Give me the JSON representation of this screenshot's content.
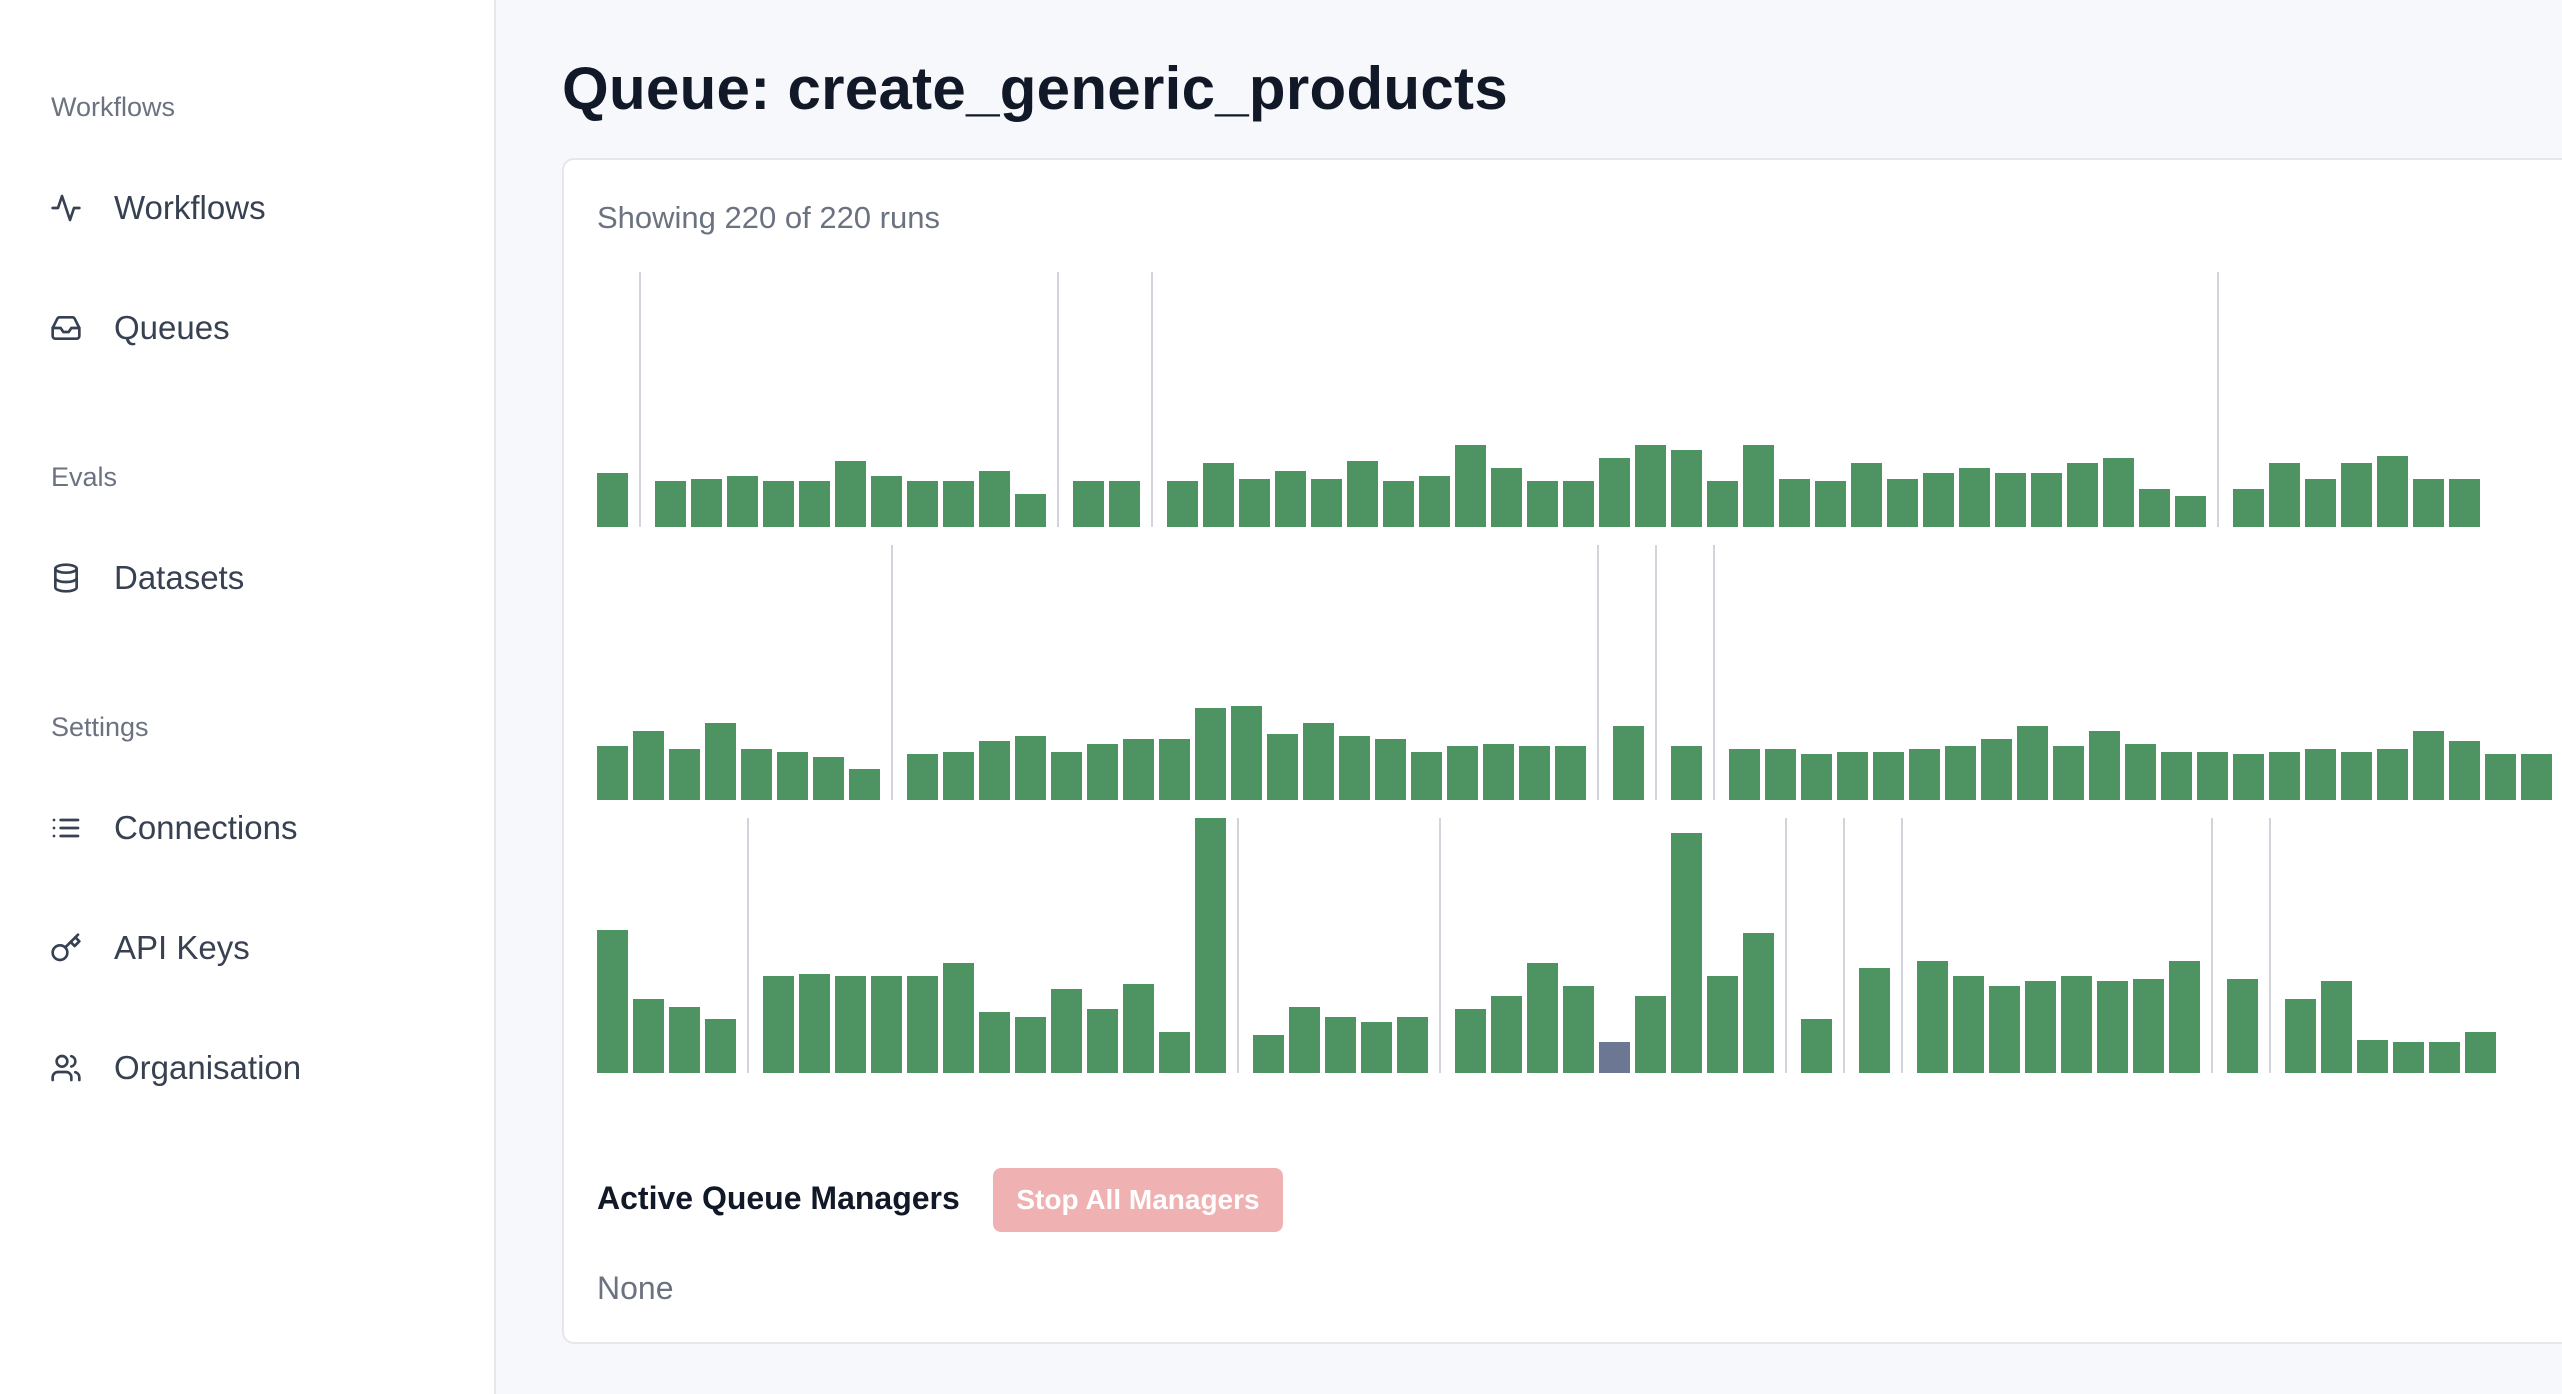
{
  "sidebar": {
    "sections": [
      {
        "label": "Workflows",
        "items": [
          {
            "label": "Workflows",
            "icon": "activity-icon"
          },
          {
            "label": "Queues",
            "icon": "inbox-icon"
          }
        ]
      },
      {
        "label": "Evals",
        "items": [
          {
            "label": "Datasets",
            "icon": "database-icon"
          }
        ]
      },
      {
        "label": "Settings",
        "items": [
          {
            "label": "Connections",
            "icon": "list-icon"
          },
          {
            "label": "API Keys",
            "icon": "key-icon"
          },
          {
            "label": "Organisation",
            "icon": "users-icon"
          }
        ]
      }
    ]
  },
  "page": {
    "title": "Queue: create_generic_products"
  },
  "runs": {
    "summary": "Showing 220 of 220 runs"
  },
  "managers": {
    "title": "Active Queue Managers",
    "stop_button": "Stop All Managers",
    "empty_text": "None"
  },
  "colors": {
    "success": "#4e9463",
    "other": "#6b7793",
    "separator": "#d1d5db",
    "stop_button_bg": "#efb1b1"
  },
  "chart_data": {
    "type": "bar",
    "description_of_series": "run durations per row, relative heights",
    "rows": [
      {
        "values": [
          0.21,
          0.18,
          0.19,
          0.2,
          0.18,
          0.18,
          0.26,
          0.2,
          0.18,
          0.18,
          0.22,
          0.13,
          0.18,
          0.18,
          0.18,
          0.25,
          0.19,
          0.22,
          0.19,
          0.26,
          0.18,
          0.2,
          0.32,
          0.23,
          0.18,
          0.18,
          0.27,
          0.32,
          0.3,
          0.18,
          0.32,
          0.19,
          0.18,
          0.25,
          0.19,
          0.21,
          0.23,
          0.21,
          0.21,
          0.25,
          0.27,
          0.15,
          0.12,
          0.15,
          0.25,
          0.19,
          0.25,
          0.28,
          0.19,
          0.19
        ],
        "separators_after": [
          0,
          11,
          13,
          42
        ],
        "highlight": []
      },
      {
        "values": [
          0.21,
          0.27,
          0.2,
          0.3,
          0.2,
          0.19,
          0.17,
          0.12,
          0.18,
          0.19,
          0.23,
          0.25,
          0.19,
          0.22,
          0.24,
          0.24,
          0.36,
          0.37,
          0.26,
          0.3,
          0.25,
          0.24,
          0.19,
          0.21,
          0.22,
          0.21,
          0.21,
          0.29,
          0.21,
          0.2,
          0.2,
          0.18,
          0.19,
          0.19,
          0.2,
          0.21,
          0.24,
          0.29,
          0.21,
          0.27,
          0.22,
          0.19,
          0.19,
          0.18,
          0.19,
          0.2,
          0.19,
          0.2,
          0.27,
          0.23,
          0.18,
          0.18
        ],
        "separators_after": [
          7,
          26,
          27,
          28
        ],
        "highlight": []
      },
      {
        "values": [
          0.56,
          0.29,
          0.26,
          0.21,
          0.38,
          0.39,
          0.38,
          0.38,
          0.38,
          0.43,
          0.24,
          0.22,
          0.33,
          0.25,
          0.35,
          0.16,
          1.0,
          0.15,
          0.26,
          0.22,
          0.2,
          0.22,
          0.25,
          0.3,
          0.43,
          0.34,
          0.12,
          0.3,
          0.94,
          0.38,
          0.55,
          0.21,
          0.41,
          0.44,
          0.38,
          0.34,
          0.36,
          0.38,
          0.36,
          0.37,
          0.44,
          0.37,
          0.29,
          0.36,
          0.13,
          0.12,
          0.12,
          0.16
        ],
        "separators_after": [
          3,
          16,
          21,
          30,
          31,
          32,
          40,
          41
        ],
        "highlight": [
          26
        ]
      }
    ]
  }
}
